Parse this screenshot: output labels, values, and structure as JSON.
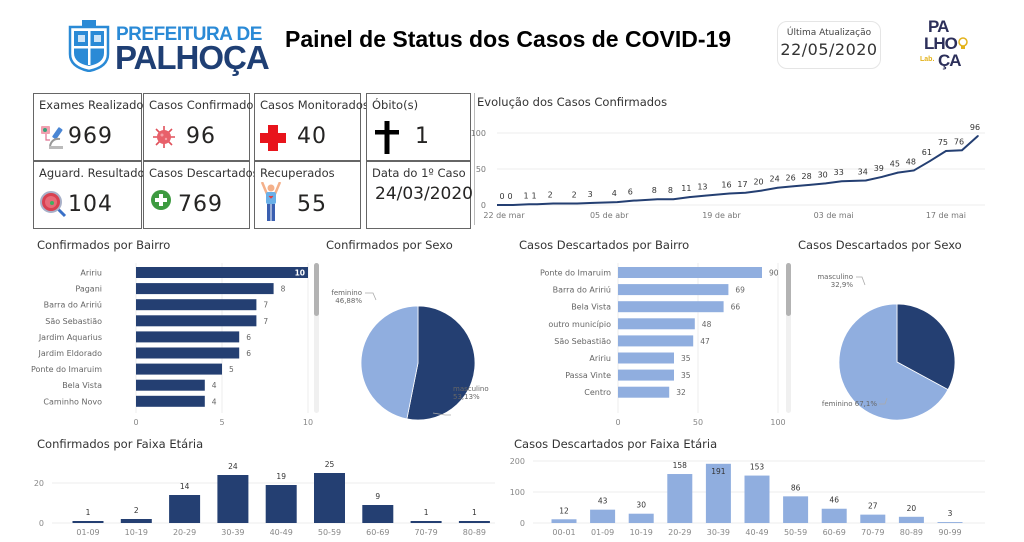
{
  "header": {
    "logo_left": {
      "line1": "PREFEITURA DE",
      "line2": "PALHOÇA"
    },
    "title": "Painel de Status dos Casos de COVID-19",
    "last_update_label": "Última Atualização",
    "last_update_value": "22/05/2020",
    "logo_right": {
      "row1": "PA",
      "row2": "LHO",
      "row3": "ÇA",
      "lab": "Lab."
    }
  },
  "kpis": [
    {
      "label": "Exames Realizados",
      "value": "969",
      "icon": "microscope-icon"
    },
    {
      "label": "Casos Confirmados",
      "value": "96",
      "icon": "virus-icon"
    },
    {
      "label": "Casos Monitorados",
      "value": "40",
      "icon": "red-cross-icon"
    },
    {
      "label": "Óbito(s)",
      "value": "1",
      "icon": "cross-icon"
    },
    {
      "label": "Aguard. Resultado",
      "value": "104",
      "icon": "petri-dish-magnifier-icon"
    },
    {
      "label": "Casos Descartados",
      "value": "769",
      "icon": "green-plus-icon"
    },
    {
      "label": "Recuperados",
      "value": "55",
      "icon": "person-arms-up-icon"
    },
    {
      "label": "Data do 1º Caso",
      "value": "24/03/2020",
      "icon": ""
    }
  ],
  "colors": {
    "dark_blue": "#243f72",
    "light_blue": "#90aedf",
    "grid": "#ececec",
    "axis_text": "#777777"
  },
  "chart_data": [
    {
      "id": "evolucao",
      "type": "line",
      "title": "Evolução dos Casos Confirmados",
      "yticks": [
        0,
        50,
        100
      ],
      "ylim": [
        0,
        100
      ],
      "xticks": [
        "22 de mar",
        "05 de abr",
        "19 de abr",
        "03 de mai",
        "17 de mai"
      ],
      "xtick_days": [
        0,
        14,
        28,
        42,
        56
      ],
      "day_range": [
        0,
        60
      ],
      "points": [
        {
          "day": 1,
          "value": 0
        },
        {
          "day": 2,
          "value": 0
        },
        {
          "day": 4,
          "value": 1
        },
        {
          "day": 5,
          "value": 1
        },
        {
          "day": 7,
          "value": 2
        },
        {
          "day": 10,
          "value": 2
        },
        {
          "day": 12,
          "value": 3
        },
        {
          "day": 15,
          "value": 4
        },
        {
          "day": 17,
          "value": 6
        },
        {
          "day": 20,
          "value": 8
        },
        {
          "day": 22,
          "value": 8
        },
        {
          "day": 24,
          "value": 11
        },
        {
          "day": 26,
          "value": 13
        },
        {
          "day": 29,
          "value": 16
        },
        {
          "day": 31,
          "value": 17
        },
        {
          "day": 33,
          "value": 20
        },
        {
          "day": 35,
          "value": 24
        },
        {
          "day": 37,
          "value": 26
        },
        {
          "day": 39,
          "value": 28
        },
        {
          "day": 41,
          "value": 30
        },
        {
          "day": 43,
          "value": 33
        },
        {
          "day": 46,
          "value": 34
        },
        {
          "day": 48,
          "value": 39
        },
        {
          "day": 50,
          "value": 45
        },
        {
          "day": 52,
          "value": 48
        },
        {
          "day": 54,
          "value": 61
        },
        {
          "day": 56,
          "value": 75
        },
        {
          "day": 58,
          "value": 76
        },
        {
          "day": 60,
          "value": 96
        }
      ]
    },
    {
      "id": "conf-bairro",
      "type": "bar",
      "orientation": "horizontal",
      "title": "Confirmados por Bairro",
      "categories": [
        "Aririu",
        "Pagani",
        "Barra do Aririú",
        "São Sebastião",
        "Jardim Aquarius",
        "Jardim Eldorado",
        "Ponte do Imaruim",
        "Bela Vista",
        "Caminho Novo"
      ],
      "values": [
        10,
        8,
        7,
        7,
        6,
        6,
        5,
        4,
        4
      ],
      "xticks": [
        0,
        5,
        10
      ],
      "xlim": [
        0,
        10
      ],
      "color": "#243f72",
      "scrollbar": true
    },
    {
      "id": "conf-sexo",
      "type": "pie",
      "title": "Confirmados por Sexo",
      "slices": [
        {
          "label": "masculino",
          "value": 53.13,
          "display": "53,13%",
          "color": "#243f72"
        },
        {
          "label": "feminino",
          "value": 46.88,
          "display": "46,88%",
          "color": "#90aedf"
        }
      ]
    },
    {
      "id": "desc-bairro",
      "type": "bar",
      "orientation": "horizontal",
      "title": "Casos Descartados por Bairro",
      "categories": [
        "Ponte do Imaruim",
        "Barra do Aririú",
        "Bela Vista",
        "outro município",
        "São Sebastião",
        "Aririu",
        "Passa Vinte",
        "Centro"
      ],
      "values": [
        90,
        69,
        66,
        48,
        47,
        35,
        35,
        32
      ],
      "xticks": [
        0,
        50,
        100
      ],
      "xlim": [
        0,
        100
      ],
      "color": "#90aedf",
      "scrollbar": true
    },
    {
      "id": "desc-sexo",
      "type": "pie",
      "title": "Casos Descartados por Sexo",
      "slices": [
        {
          "label": "masculino",
          "value": 32.9,
          "display": "32,9%",
          "color": "#243f72"
        },
        {
          "label": "feminino",
          "value": 67.1,
          "display": "67,1%",
          "color": "#90aedf"
        }
      ]
    },
    {
      "id": "conf-faixa",
      "type": "bar",
      "orientation": "vertical",
      "title": "Confirmados por Faixa Etária",
      "categories": [
        "01-09",
        "10-19",
        "20-29",
        "30-39",
        "40-49",
        "50-59",
        "60-69",
        "70-79",
        "80-89"
      ],
      "values": [
        1,
        2,
        14,
        24,
        19,
        25,
        9,
        1,
        1
      ],
      "yticks": [
        0,
        20
      ],
      "ylim": [
        0,
        28
      ],
      "color": "#243f72"
    },
    {
      "id": "desc-faixa",
      "type": "bar",
      "orientation": "vertical",
      "title": "Casos Descartados por Faixa Etária",
      "categories": [
        "00-01",
        "01-09",
        "10-19",
        "20-29",
        "30-39",
        "40-49",
        "50-59",
        "60-69",
        "70-79",
        "80-89",
        "90-99"
      ],
      "values": [
        12,
        43,
        30,
        158,
        191,
        153,
        86,
        46,
        27,
        20,
        3
      ],
      "yticks": [
        0,
        100,
        200
      ],
      "ylim": [
        0,
        200
      ],
      "color": "#90aedf"
    }
  ]
}
